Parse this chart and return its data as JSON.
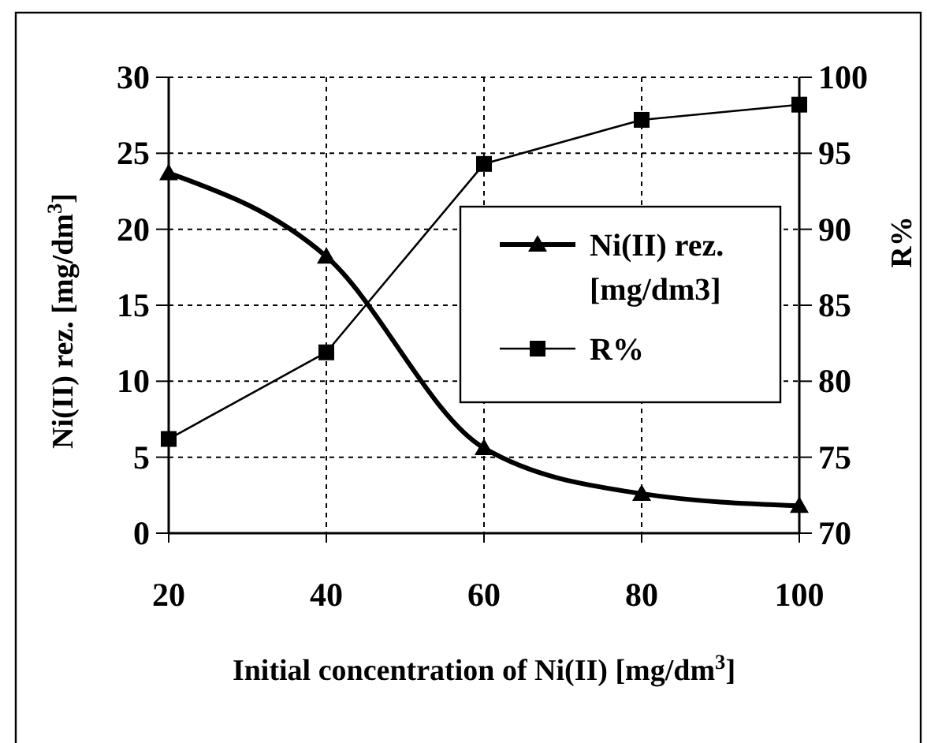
{
  "chart_data": {
    "type": "line",
    "xlabel": "Initial concentration of Ni(II) [mg/dm$^{3}$]",
    "ylabel": "Ni(II) rez.  [mg/dm$^{3}$]",
    "y2label": "R%",
    "x": [
      20,
      40,
      60,
      80,
      100
    ],
    "series": [
      {
        "name": "Ni(II) rez. [mg/dm3]",
        "color": "#000000",
        "values": [
          23.7,
          18.2,
          5.6,
          2.6,
          1.8
        ],
        "marker": "triangle"
      },
      {
        "name": "R%",
        "color": "#000000",
        "values": [
          76.2,
          81.9,
          94.3,
          97.2,
          98.2
        ],
        "marker": "square",
        "axis": "y2"
      }
    ],
    "xlim": [
      20,
      100
    ],
    "xticks": [
      20,
      40,
      60,
      80,
      100
    ],
    "ylim": [
      0,
      30
    ],
    "yticks": [
      0,
      5,
      10,
      15,
      20,
      25,
      30
    ],
    "y2lim": [
      70,
      100
    ],
    "y2ticks": [
      70,
      75,
      80,
      85,
      90,
      95,
      100
    ],
    "grid": true,
    "legend": "right",
    "line_style": "solid"
  }
}
